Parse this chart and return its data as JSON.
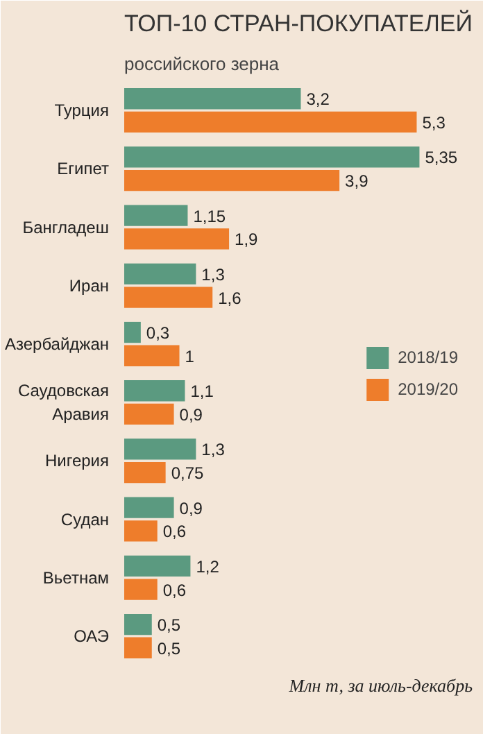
{
  "chart_data": {
    "type": "bar",
    "orientation": "horizontal",
    "title": "ТОП-10 СТРАН-ПОКУПАТЕЛЕЙ",
    "subtitle": "российского зерна",
    "categories": [
      "Турция",
      "Египет",
      "Бангладеш",
      "Иран",
      "Азербайджан",
      "Саудовская\nАравия",
      "Нигерия",
      "Судан",
      "Вьетнам",
      "ОАЭ"
    ],
    "series": [
      {
        "name": "2018/19",
        "color": "#5b9a80",
        "values": [
          3.2,
          5.35,
          1.15,
          1.3,
          0.3,
          1.1,
          1.3,
          0.9,
          1.2,
          0.5
        ],
        "value_labels": [
          "3,2",
          "5,35",
          "1,15",
          "1,3",
          "0,3",
          "1,1",
          "1,3",
          "0,9",
          "1,2",
          "0,5"
        ]
      },
      {
        "name": "2019/20",
        "color": "#ee7d2b",
        "values": [
          5.3,
          3.9,
          1.9,
          1.6,
          1,
          0.9,
          0.75,
          0.6,
          0.6,
          0.5
        ],
        "value_labels": [
          "5,3",
          "3,9",
          "1,9",
          "1,6",
          "1",
          "0,9",
          "0,75",
          "0,6",
          "0,6",
          "0,5"
        ]
      }
    ],
    "annotations": [
      "Млн т, за июль-декабрь"
    ],
    "legend": "right",
    "tick_labels": "y",
    "grid": false
  }
}
